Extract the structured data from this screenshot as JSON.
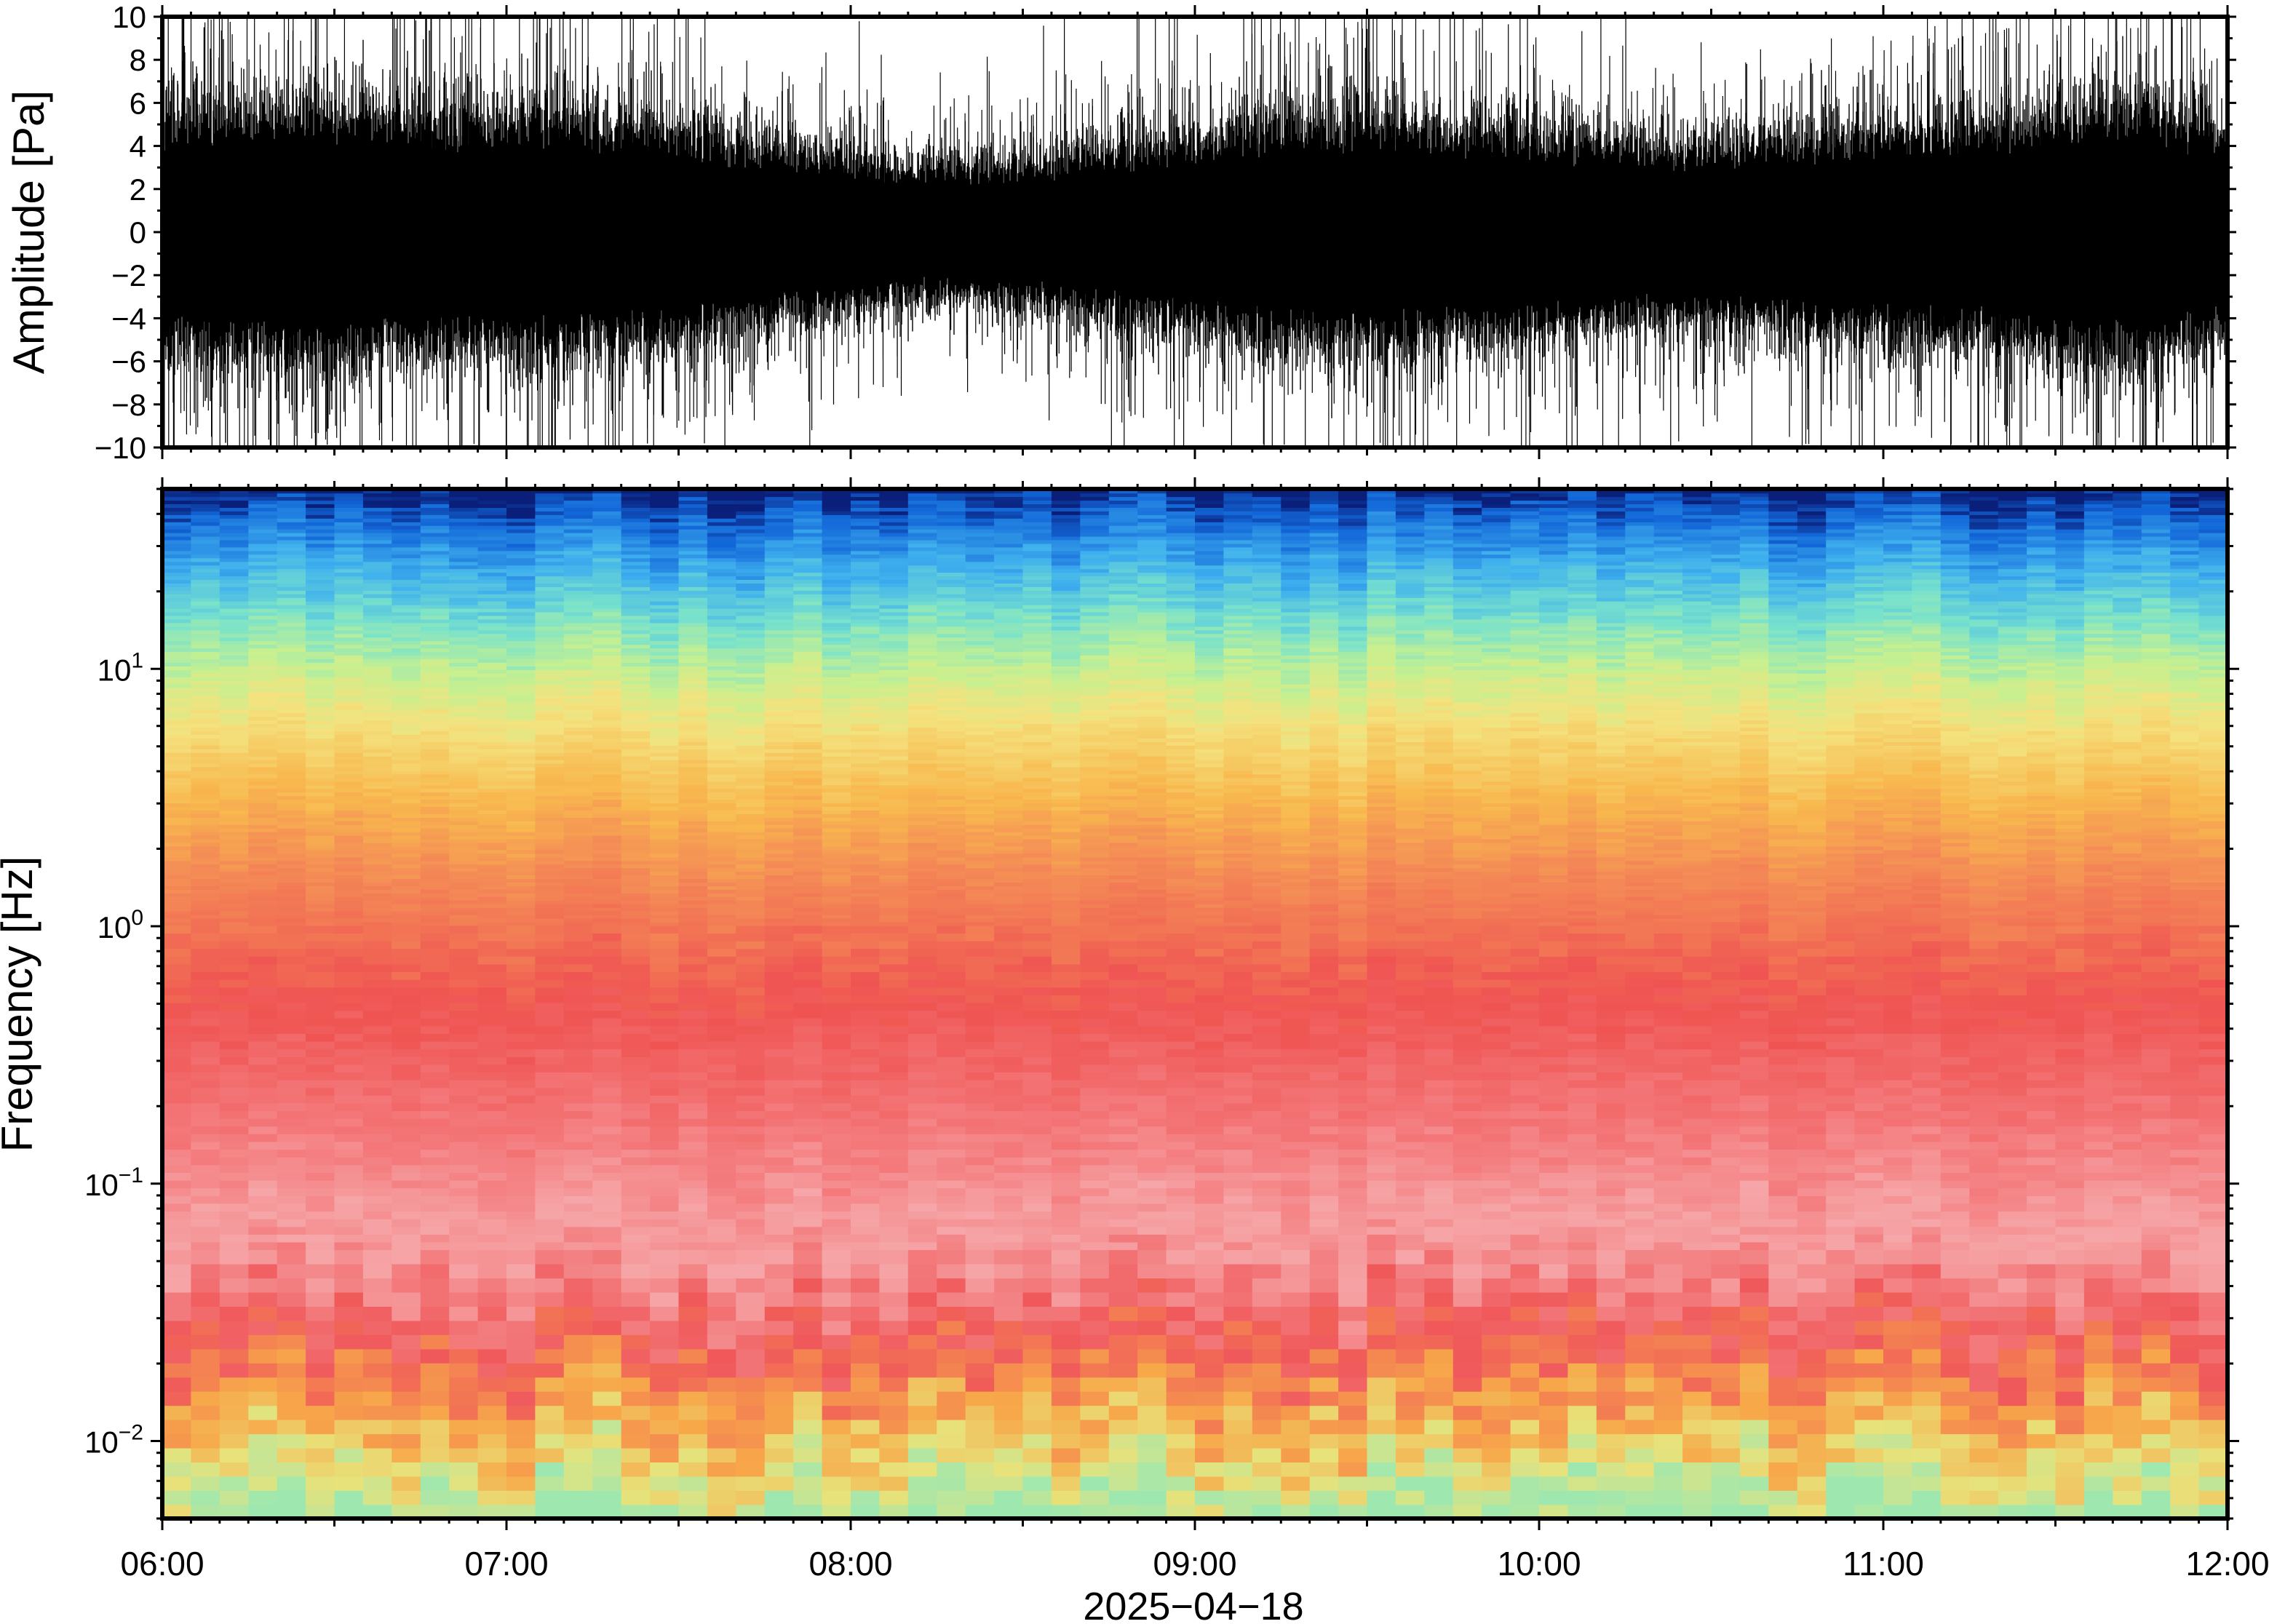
{
  "chart_data": [
    {
      "type": "line",
      "panel": "waveform",
      "ylabel": "Amplitude [Pa]",
      "ylim": [
        -10,
        10
      ],
      "yticks": [
        -10,
        -8,
        -6,
        -4,
        -2,
        0,
        2,
        4,
        6,
        8,
        10
      ],
      "ytick_labels": [
        "−10",
        "−8",
        "−6",
        "−4",
        "−2",
        "0",
        "2",
        "4",
        "6",
        "8",
        "10"
      ],
      "xlim": [
        "2025-04-18T06:00",
        "2025-04-18T12:00"
      ],
      "series": [
        {
          "color": "#000000",
          "envelope_time": [
            "06:00",
            "06:15",
            "06:30",
            "06:45",
            "07:00",
            "07:15",
            "07:30",
            "07:45",
            "08:00",
            "08:15",
            "08:30",
            "08:45",
            "09:00",
            "09:15",
            "09:30",
            "09:45",
            "10:00",
            "10:15",
            "10:30",
            "10:45",
            "11:00",
            "11:15",
            "11:30",
            "11:45",
            "12:00"
          ],
          "envelope_amplitude_pa": [
            5.0,
            5.5,
            5.5,
            5.0,
            5.2,
            5.0,
            4.6,
            3.8,
            3.4,
            2.8,
            3.0,
            3.6,
            4.2,
            4.8,
            5.0,
            4.6,
            4.2,
            4.0,
            3.8,
            4.2,
            4.4,
            4.6,
            5.2,
            5.6,
            4.4
          ]
        }
      ]
    },
    {
      "type": "heatmap",
      "panel": "spectrogram",
      "ylabel": "Frequency [Hz]",
      "yscale": "log",
      "ylim": [
        0.005,
        50
      ],
      "yticks": [
        0.01,
        0.1,
        1,
        10
      ],
      "ytick_labels": [
        {
          "base": "10",
          "exp": "−2"
        },
        {
          "base": "10",
          "exp": "−1"
        },
        {
          "base": "10",
          "exp": "0"
        },
        {
          "base": "10",
          "exp": "1"
        }
      ],
      "xlabel": "2025−04−18",
      "xtick_labels": [
        "06:00",
        "07:00",
        "08:00",
        "09:00",
        "10:00",
        "11:00",
        "12:00"
      ],
      "xtick_hours": [
        6,
        7,
        8,
        9,
        10,
        11,
        12
      ],
      "colormap": "rainbow",
      "color_by_log10_frequency": [
        {
          "log10_f": -2.3,
          "color": "#9ee8b0"
        },
        {
          "log10_f": -2.1,
          "color": "#e8e27a"
        },
        {
          "log10_f": -1.9,
          "color": "#f7a94a"
        },
        {
          "log10_f": -1.6,
          "color": "#f0585a"
        },
        {
          "log10_f": -1.2,
          "color": "#f6a6a8"
        },
        {
          "log10_f": -0.8,
          "color": "#f4797b"
        },
        {
          "log10_f": -0.3,
          "color": "#ef5452"
        },
        {
          "log10_f": 0.2,
          "color": "#f48a56"
        },
        {
          "log10_f": 0.5,
          "color": "#f8b84e"
        },
        {
          "log10_f": 0.8,
          "color": "#f4e27e"
        },
        {
          "log10_f": 1.0,
          "color": "#c6f090"
        },
        {
          "log10_f": 1.2,
          "color": "#78e2cc"
        },
        {
          "log10_f": 1.4,
          "color": "#3fb0ee"
        },
        {
          "log10_f": 1.6,
          "color": "#1266d8"
        },
        {
          "log10_f": 1.7,
          "color": "#0a1f7a"
        }
      ]
    }
  ]
}
